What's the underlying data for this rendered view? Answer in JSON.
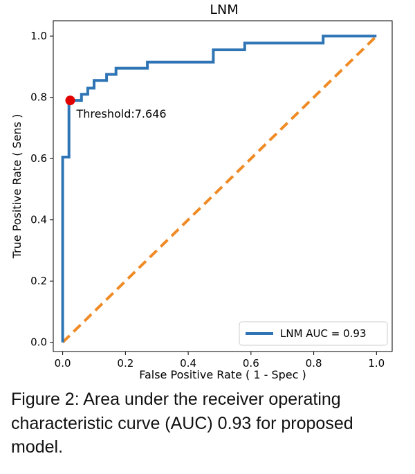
{
  "chart_data": {
    "type": "line",
    "title": "LNM",
    "xlabel": "False Positive Rate ( 1 - Spec )",
    "ylabel": "True Positive Rate ( Sens )",
    "xlim": [
      -0.03,
      1.05
    ],
    "ylim": [
      -0.03,
      1.05
    ],
    "xticks": [
      "0.0",
      "0.2",
      "0.4",
      "0.6",
      "0.8",
      "1.0"
    ],
    "yticks": [
      "0.0",
      "0.2",
      "0.4",
      "0.6",
      "0.8",
      "1.0"
    ],
    "grid": false,
    "legend_position": "bottom-right",
    "series": [
      {
        "name": "LNM AUC = 0.93",
        "color": "#2f75b5",
        "x": [
          0.0,
          0.0,
          0.0,
          0.02,
          0.02,
          0.02,
          0.06,
          0.06,
          0.08,
          0.08,
          0.1,
          0.1,
          0.14,
          0.14,
          0.17,
          0.17,
          0.27,
          0.27,
          0.48,
          0.48,
          0.58,
          0.58,
          0.83,
          0.83,
          1.0
        ],
        "y": [
          0.0,
          0.0,
          0.605,
          0.605,
          0.79,
          0.79,
          0.79,
          0.81,
          0.81,
          0.83,
          0.83,
          0.855,
          0.855,
          0.875,
          0.875,
          0.895,
          0.895,
          0.915,
          0.915,
          0.955,
          0.955,
          0.977,
          0.977,
          1.0,
          1.0
        ]
      }
    ],
    "reference_line": {
      "color": "#f08a24",
      "x": [
        0.0,
        1.0
      ],
      "y": [
        0.0,
        1.0
      ]
    },
    "marker": {
      "x": 0.024,
      "y": 0.79,
      "color": "#e00000",
      "label": "Threshold:7.646"
    }
  },
  "caption": {
    "prefix": "Figure 2",
    "text": ": Area under the receiver operating characteristic curve (AUC) 0.93 for proposed model."
  }
}
